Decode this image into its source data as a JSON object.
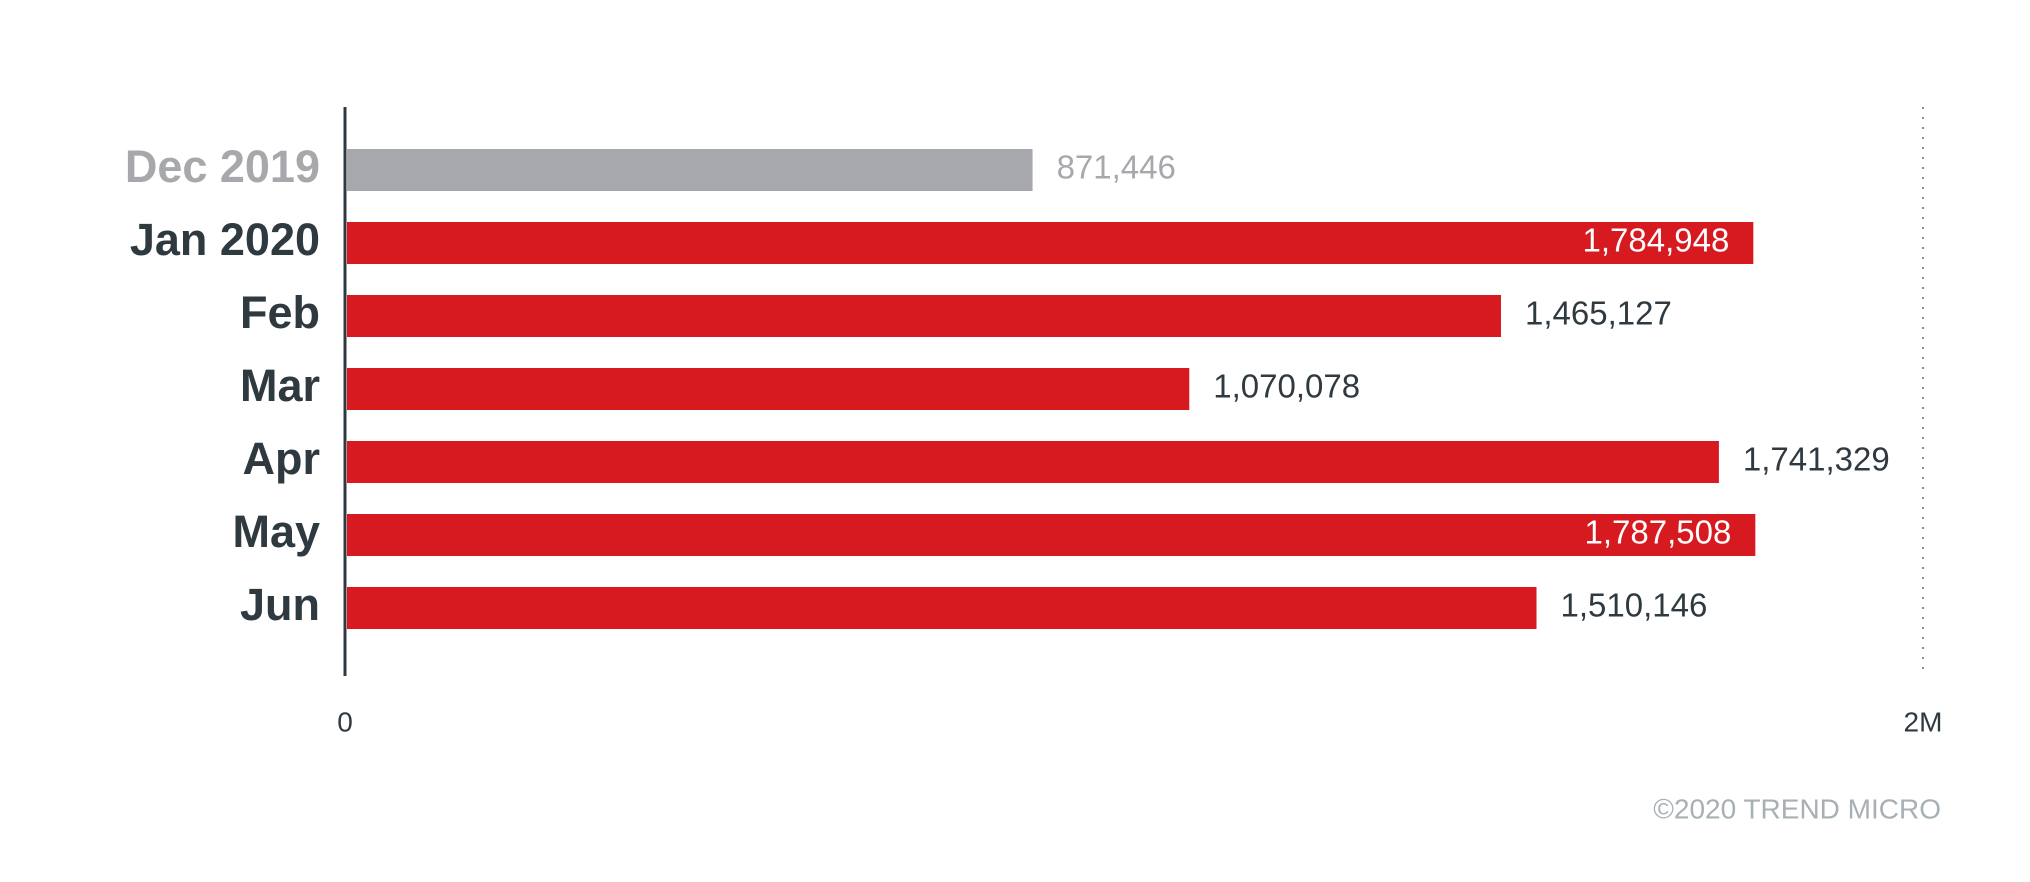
{
  "chart_data": {
    "type": "bar",
    "orientation": "horizontal",
    "categories": [
      "Dec 2019",
      "Jan 2020",
      "Feb",
      "Mar",
      "Apr",
      "May",
      "Jun"
    ],
    "values": [
      871446,
      1784948,
      1465127,
      1070078,
      1741329,
      1787508,
      1510146
    ],
    "value_labels": [
      "871,446",
      "1,784,948",
      "1,465,127",
      "1,070,078",
      "1,741,329",
      "1,787,508",
      "1,510,146"
    ],
    "colors": [
      "#a7a8ab",
      "#d71920",
      "#d71920",
      "#d71920",
      "#d71920",
      "#d71920",
      "#d71920"
    ],
    "xlim": [
      0,
      2000000
    ],
    "xticks": [
      0,
      {
        "value": 2000000,
        "label": "2M"
      }
    ],
    "grid": true,
    "footer": "©2020 TREND MICRO"
  }
}
